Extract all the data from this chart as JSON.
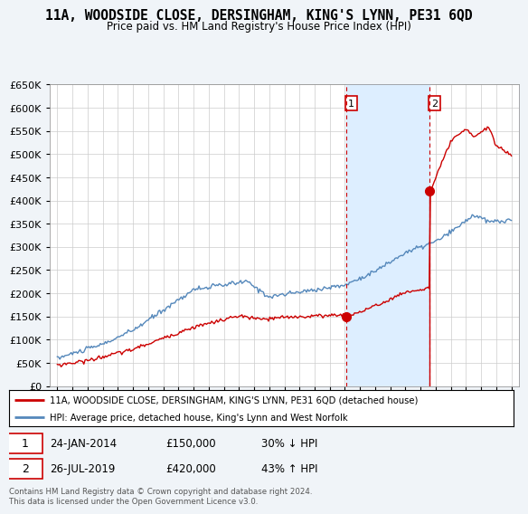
{
  "title": "11A, WOODSIDE CLOSE, DERSINGHAM, KING'S LYNN, PE31 6QD",
  "subtitle": "Price paid vs. HM Land Registry's House Price Index (HPI)",
  "legend_line1": "11A, WOODSIDE CLOSE, DERSINGHAM, KING'S LYNN, PE31 6QD (detached house)",
  "legend_line2": "HPI: Average price, detached house, King's Lynn and West Norfolk",
  "sale1_date": "24-JAN-2014",
  "sale1_price": "£150,000",
  "sale1_pct": "30% ↓ HPI",
  "sale1_year": 2014.07,
  "sale1_value": 150000,
  "sale2_date": "26-JUL-2019",
  "sale2_price": "£420,000",
  "sale2_pct": "43% ↑ HPI",
  "sale2_year": 2019.57,
  "sale2_value": 420000,
  "footnote": "Contains HM Land Registry data © Crown copyright and database right 2024.\nThis data is licensed under the Open Government Licence v3.0.",
  "red_color": "#cc0000",
  "blue_color": "#5588bb",
  "shade_color": "#ddeeff",
  "bg_color": "#f0f4f8",
  "plot_bg": "#ffffff",
  "ylim": [
    0,
    650000
  ],
  "ytick_step": 50000,
  "xlim_start": 1994.5,
  "xlim_end": 2025.5
}
